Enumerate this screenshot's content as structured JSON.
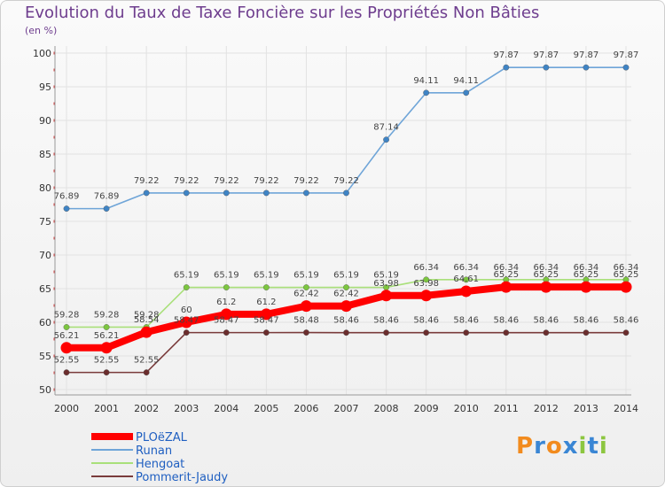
{
  "chart_data": {
    "type": "line",
    "title": "Evolution du Taux de Taxe Foncière sur les Propriétés Non Bâties",
    "subtitle": "(en %)",
    "xlabel": "",
    "ylabel": "(en %)",
    "ylim": [
      50,
      100
    ],
    "y_ticks": [
      50,
      55,
      60,
      65,
      70,
      75,
      80,
      85,
      90,
      95,
      100
    ],
    "categories": [
      "2000",
      "2001",
      "2002",
      "2003",
      "2004",
      "2005",
      "2006",
      "2007",
      "2008",
      "2009",
      "2010",
      "2011",
      "2012",
      "2013",
      "2014"
    ],
    "legend_position": "bottom-left",
    "series": [
      {
        "name": "Runan",
        "color": "#6fa5d8",
        "marker": "#3f84c5",
        "values": [
          76.89,
          76.89,
          79.22,
          79.22,
          79.22,
          79.22,
          79.22,
          79.22,
          87.14,
          94.11,
          94.11,
          97.87,
          97.87,
          97.87,
          97.87
        ],
        "labels": [
          "76.89",
          "76.89",
          "79.22",
          "79.22",
          "79.22",
          "79.22",
          "79.22",
          "79.22",
          "87.14",
          "94.11",
          "94.11",
          "97.87",
          "97.87",
          "97.87",
          "97.87"
        ]
      },
      {
        "name": "Hengoat",
        "color": "#a9e07a",
        "marker": "#7cc63f",
        "values": [
          59.28,
          59.28,
          59.28,
          65.19,
          65.19,
          65.19,
          65.19,
          65.19,
          65.19,
          66.34,
          66.34,
          66.34,
          66.34,
          66.34,
          66.34
        ],
        "labels": [
          "59.28",
          "59.28",
          "59.28",
          "65.19",
          "65.19",
          "65.19",
          "65.19",
          "65.19",
          "65.19",
          "66.34",
          "66.34",
          "66.34",
          "66.34",
          "66.34",
          "66.34"
        ]
      },
      {
        "name": "Pommerit-Jaudy",
        "color": "#7a3b3b",
        "marker": "#6b2d2d",
        "values": [
          52.55,
          52.55,
          52.55,
          58.47,
          58.47,
          58.47,
          58.48,
          58.46,
          58.46,
          58.46,
          58.46,
          58.46,
          58.46,
          58.46,
          58.46
        ],
        "labels": [
          "52.55",
          "52.55",
          "52.55",
          "58.47",
          "58.47",
          "58.47",
          "58.48",
          "58.46",
          "58.46",
          "58.46",
          "58.46",
          "58.46",
          "58.46",
          "58.46",
          "58.46"
        ]
      },
      {
        "name": "PLOëZAL",
        "color": "#ff0000",
        "marker": "#ff0000",
        "values": [
          56.21,
          56.21,
          58.54,
          60,
          61.2,
          61.2,
          62.42,
          62.42,
          63.98,
          63.98,
          64.61,
          65.25,
          65.25,
          65.25,
          65.25
        ],
        "labels": [
          "56.21",
          "56.21",
          "58.54",
          "60",
          "61.2",
          "61.2",
          "62.42",
          "62.42",
          "63.98",
          "63.98",
          "64.61",
          "65.25",
          "65.25",
          "65.25",
          "65.25"
        ]
      }
    ],
    "legend_order": [
      "PLOëZAL",
      "Runan",
      "Hengoat",
      "Pommerit-Jaudy"
    ]
  },
  "logo": {
    "letters": [
      "P",
      "r",
      "o",
      "x",
      "i",
      "t",
      "i"
    ],
    "colors": [
      "#f28b1e",
      "#3a86d4",
      "#f28b1e",
      "#3a86d4",
      "#8cc63f",
      "#3a86d4",
      "#8cc63f"
    ]
  }
}
